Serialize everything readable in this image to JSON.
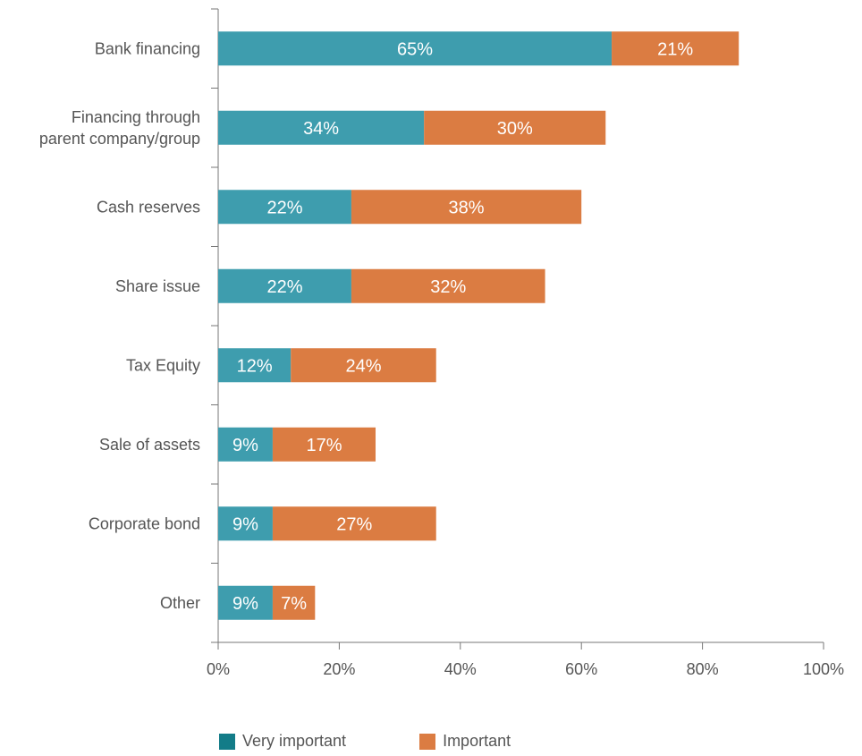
{
  "chart_data": {
    "type": "bar",
    "orientation": "horizontal",
    "stacked": true,
    "categories": [
      "Bank financing",
      "Financing through\nparent company/group",
      "Cash reserves",
      "Share issue",
      "Tax Equity",
      "Sale of assets",
      "Corporate bond",
      "Other"
    ],
    "series": [
      {
        "name": "Very important",
        "color": "#3E9DAE",
        "values": [
          65,
          34,
          22,
          22,
          12,
          9,
          9,
          9
        ],
        "labels": [
          "65%",
          "34%",
          "22%",
          "22%",
          "12%",
          "9%",
          "9%",
          "9%"
        ]
      },
      {
        "name": "Important",
        "color": "#DB7C42",
        "values": [
          21,
          30,
          38,
          32,
          24,
          17,
          27,
          7
        ],
        "labels": [
          "21%",
          "30%",
          "38%",
          "32%",
          "24%",
          "17%",
          "27%",
          "7%"
        ]
      }
    ],
    "xlim": [
      0,
      100
    ],
    "xticks": [
      "0%",
      "20%",
      "40%",
      "60%",
      "80%",
      "100%"
    ],
    "grid": false,
    "legend_position": "bottom",
    "legend_swatch_colors": [
      "#137C88",
      "#DB7C42"
    ]
  }
}
